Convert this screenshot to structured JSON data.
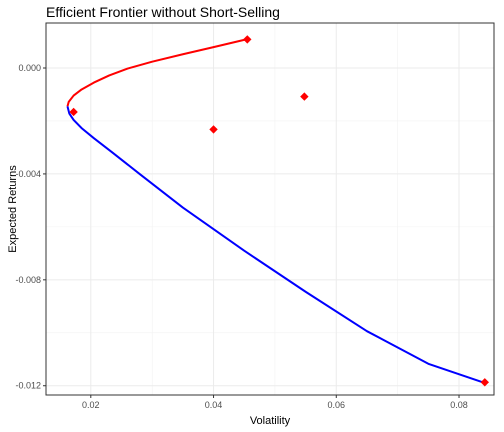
{
  "chart_data": {
    "type": "line",
    "title": "Efficient Frontier without Short-Selling",
    "xlabel": "Volatility",
    "ylabel": "Expected Returns",
    "xlim": [
      0.0127,
      0.0857
    ],
    "ylim": [
      -0.01235,
      0.0017
    ],
    "x_ticks": [
      0.02,
      0.04,
      0.06,
      0.08
    ],
    "x_tick_labels": [
      "0.02",
      "0.04",
      "0.06",
      "0.08"
    ],
    "y_ticks": [
      0.0,
      -0.004,
      -0.008,
      -0.012
    ],
    "y_tick_labels": [
      "0.000",
      "-0.004",
      "-0.008",
      "-0.012"
    ],
    "grid": true,
    "series": [
      {
        "kind": "line",
        "color": "#ff0000",
        "points": [
          [
            0.0455,
            0.00109
          ],
          [
            0.04,
            0.00079
          ],
          [
            0.035,
            0.00052
          ],
          [
            0.03,
            0.00024
          ],
          [
            0.026,
            -2e-05
          ],
          [
            0.023,
            -0.00028
          ],
          [
            0.0205,
            -0.00055
          ],
          [
            0.0185,
            -0.00081
          ],
          [
            0.0172,
            -0.00104
          ],
          [
            0.0164,
            -0.00128
          ],
          [
            0.0162,
            -0.00145
          ]
        ]
      },
      {
        "kind": "line",
        "color": "#0000ff",
        "points": [
          [
            0.0162,
            -0.00145
          ],
          [
            0.0165,
            -0.00172
          ],
          [
            0.0172,
            -0.00196
          ],
          [
            0.0185,
            -0.00227
          ],
          [
            0.0205,
            -0.00265
          ],
          [
            0.0235,
            -0.00319
          ],
          [
            0.028,
            -0.00401
          ],
          [
            0.035,
            -0.00527
          ],
          [
            0.045,
            -0.0069
          ],
          [
            0.055,
            -0.00845
          ],
          [
            0.065,
            -0.00994
          ],
          [
            0.075,
            -0.01117
          ],
          [
            0.084,
            -0.01188
          ]
        ]
      },
      {
        "kind": "scatter",
        "color": "#ff0000",
        "marker": "diamond",
        "points": [
          [
            0.0455,
            0.00108
          ],
          [
            0.0172,
            -0.00166
          ],
          [
            0.04,
            -0.00232
          ],
          [
            0.0548,
            -0.00108
          ],
          [
            0.0842,
            -0.01187
          ]
        ]
      }
    ]
  }
}
